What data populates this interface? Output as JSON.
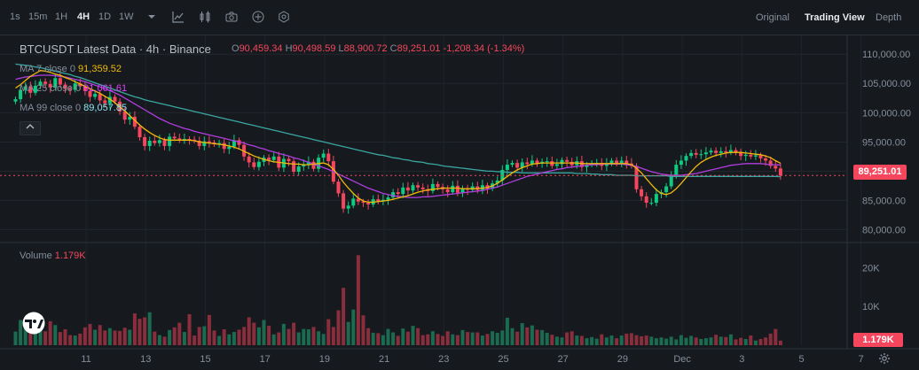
{
  "toolbar": {
    "timeframes": [
      "1s",
      "15m",
      "1H",
      "4H",
      "1D",
      "1W"
    ],
    "active_timeframe": "4H",
    "views": [
      "Original",
      "Trading View",
      "Depth"
    ],
    "active_view": "Trading View"
  },
  "legend": {
    "title": "BTCUSDT Latest Data · 4h · Binance",
    "ohlc": {
      "o_label": "O",
      "o": "90,459.34",
      "h_label": "H",
      "h": "90,498.59",
      "l_label": "L",
      "l": "88,900.72",
      "c_label": "C",
      "c": "89,251.01",
      "change": "-1,208.34 (-1.34%)"
    },
    "ma": [
      {
        "label": "MA 7 close 0",
        "value": "91,359.52",
        "color": "#f0b90b"
      },
      {
        "label": "MA 25 close 0",
        "value": "91,061.61",
        "color": "#e040fb"
      },
      {
        "label": "MA 99 close 0",
        "value": "89,057.85",
        "color": "#8fe3f0"
      }
    ],
    "volume_label": "Volume",
    "volume_value": "1.179K"
  },
  "colors": {
    "up": "#0ecb81",
    "down": "#f6465d",
    "ma7": "#f0b90b",
    "ma25": "#b13ee0",
    "ma99": "#3aa6a1"
  },
  "price_tag": "89,251.01",
  "volume_tag": "1.179K",
  "chart_data": {
    "type": "candlestick",
    "symbol": "BTCUSDT",
    "interval": "4h",
    "y_ticks": [
      "110,000.00",
      "105,000.00",
      "100,000.00",
      "95,000.00",
      "90,000.00",
      "85,000.00",
      "80,000.00"
    ],
    "y_tick_values": [
      110000,
      105000,
      100000,
      95000,
      90000,
      85000,
      80000
    ],
    "ylim": [
      78400,
      112300
    ],
    "volume_ticks": [
      "20K",
      "10K"
    ],
    "volume_tick_values": [
      20000,
      10000
    ],
    "volume_ylim": [
      0,
      23500
    ],
    "x_ticks": [
      "11",
      "13",
      "15",
      "17",
      "19",
      "21",
      "23",
      "25",
      "27",
      "29",
      "Dec",
      "3",
      "5",
      "7"
    ],
    "x_tick_index": [
      6,
      18,
      30,
      42,
      54,
      66,
      78,
      90,
      102,
      114,
      126,
      138,
      150,
      162
    ],
    "closes": [
      102300,
      103900,
      104500,
      103400,
      104600,
      105300,
      104900,
      104300,
      105900,
      104800,
      104100,
      103900,
      105000,
      104500,
      103700,
      102700,
      103200,
      102100,
      101600,
      102700,
      101900,
      100200,
      98800,
      99300,
      97600,
      95800,
      94300,
      95200,
      94800,
      95300,
      94300,
      95900,
      95600,
      95400,
      95500,
      95400,
      95200,
      94300,
      95100,
      94900,
      94600,
      94800,
      93800,
      94200,
      95300,
      94500,
      92500,
      91500,
      90700,
      91600,
      92300,
      91900,
      92500,
      90600,
      92100,
      91700,
      89900,
      90800,
      91200,
      91600,
      90400,
      92300,
      93000,
      91700,
      88200,
      86200,
      83600,
      84100,
      85300,
      84800,
      84600,
      84300,
      85200,
      84900,
      85100,
      85500,
      86400,
      86100,
      87200,
      86700,
      87600,
      87200,
      86900,
      86600,
      87800,
      87300,
      86900,
      86400,
      87500,
      86300,
      87100,
      86800,
      87400,
      86800,
      87600,
      87000,
      87900,
      88400,
      90200,
      91100,
      91400,
      90600,
      91500,
      91200,
      91800,
      91300,
      91600,
      91700,
      90900,
      91200,
      91900,
      91600,
      91000,
      91700,
      90700,
      91100,
      91300,
      91400,
      90900,
      91300,
      91800,
      91400,
      91800,
      91300,
      90900,
      86900,
      85700,
      84600,
      84600,
      86100,
      86400,
      87400,
      89300,
      91100,
      91800,
      92600,
      93100,
      92800,
      92900,
      93200,
      93500,
      93100,
      93400,
      93200,
      93600,
      93300,
      92600,
      92800,
      92500,
      92700,
      92200,
      91800,
      90900,
      90459,
      89251
    ],
    "opens": [
      101900,
      102300,
      103900,
      104500,
      103400,
      104600,
      105300,
      104900,
      104300,
      105900,
      104800,
      104100,
      103900,
      105000,
      104500,
      103700,
      102700,
      103200,
      102100,
      101600,
      102700,
      101900,
      100200,
      98800,
      99300,
      97600,
      95800,
      94300,
      95200,
      94800,
      95300,
      94300,
      95900,
      95600,
      95400,
      95500,
      95400,
      95200,
      94300,
      95100,
      94900,
      94600,
      94800,
      93800,
      94200,
      95300,
      94500,
      92500,
      91500,
      90700,
      91600,
      92300,
      91900,
      92500,
      90600,
      92100,
      91700,
      89900,
      90800,
      91200,
      91600,
      90400,
      92300,
      93000,
      91700,
      88200,
      86200,
      83600,
      84100,
      85300,
      84800,
      84600,
      84300,
      85200,
      84900,
      85100,
      85500,
      86400,
      86100,
      87200,
      86700,
      87600,
      87200,
      86900,
      86600,
      87800,
      87300,
      86900,
      86400,
      87500,
      86300,
      87100,
      86800,
      87400,
      86800,
      87600,
      87000,
      87900,
      88400,
      90200,
      91100,
      91400,
      90600,
      91500,
      91200,
      91800,
      91300,
      91600,
      91700,
      90900,
      91200,
      91900,
      91600,
      91000,
      91700,
      90700,
      91100,
      91300,
      91400,
      90900,
      91300,
      91800,
      91400,
      91800,
      91300,
      90900,
      86900,
      85700,
      84600,
      84600,
      86100,
      86400,
      87400,
      89300,
      91100,
      91800,
      92600,
      93100,
      92800,
      92900,
      93200,
      93500,
      93100,
      93400,
      93200,
      93600,
      93300,
      92600,
      92800,
      92500,
      92700,
      92200,
      91800,
      90900,
      90459
    ],
    "ma7": [
      104200,
      104800,
      105500,
      106200,
      106700,
      107200,
      107100,
      106900,
      106600,
      106400,
      106000,
      105700,
      105300,
      104900,
      104500,
      104100,
      103700,
      103300,
      102800,
      102300,
      101700,
      101000,
      100300,
      99500,
      98700,
      97900,
      97200,
      96600,
      96100,
      95700,
      95400,
      95300,
      95300,
      95300,
      95300,
      95300,
      95200,
      95000,
      94900,
      94800,
      94700,
      94600,
      94500,
      94300,
      94100,
      93800,
      93400,
      93000,
      92600,
      92300,
      92000,
      91800,
      91600,
      91500,
      91400,
      91300,
      91200,
      91200,
      91100,
      91100,
      91200,
      91300,
      91400,
      91100,
      90300,
      89300,
      88100,
      87100,
      86200,
      85400,
      84900,
      84700,
      84700,
      84800,
      84900,
      85000,
      85200,
      85400,
      85600,
      85800,
      86100,
      86400,
      86600,
      86800,
      86900,
      87000,
      87100,
      87100,
      87100,
      87100,
      87000,
      87000,
      87000,
      87000,
      87100,
      87200,
      87500,
      87900,
      88500,
      89100,
      89700,
      90200,
      90600,
      90900,
      91200,
      91300,
      91400,
      91400,
      91400,
      91400,
      91400,
      91400,
      91400,
      91400,
      91300,
      91300,
      91300,
      91300,
      91300,
      91300,
      91300,
      91300,
      91300,
      91300,
      91100,
      90500,
      89700,
      88700,
      87700,
      86800,
      86200,
      86000,
      86300,
      87000,
      87900,
      88900,
      89900,
      90800,
      91500,
      92000,
      92400,
      92700,
      92900,
      93100,
      93200,
      93200,
      93200,
      93100,
      93000,
      92900,
      92800,
      92600,
      92300,
      91800,
      91360
    ],
    "ma25": [
      105700,
      105900,
      106100,
      106200,
      106300,
      106400,
      106400,
      106400,
      106300,
      106200,
      106100,
      105900,
      105700,
      105500,
      105300,
      105000,
      104700,
      104400,
      104100,
      103800,
      103400,
      103000,
      102500,
      102000,
      101500,
      101000,
      100500,
      100000,
      99500,
      99000,
      98600,
      98200,
      97900,
      97600,
      97300,
      97100,
      96800,
      96600,
      96400,
      96200,
      96000,
      95800,
      95600,
      95400,
      95200,
      95000,
      94800,
      94500,
      94300,
      94000,
      93800,
      93500,
      93300,
      93000,
      92800,
      92600,
      92300,
      92100,
      91800,
      91500,
      91200,
      90900,
      90600,
      90300,
      89900,
      89500,
      89100,
      88700,
      88300,
      87900,
      87500,
      87100,
      86800,
      86500,
      86200,
      86000,
      85800,
      85700,
      85600,
      85500,
      85500,
      85500,
      85600,
      85600,
      85700,
      85800,
      85900,
      86000,
      86100,
      86200,
      86300,
      86400,
      86500,
      86600,
      86700,
      86900,
      87100,
      87300,
      87600,
      87900,
      88200,
      88500,
      88800,
      89100,
      89300,
      89500,
      89700,
      89900,
      90100,
      90300,
      90400,
      90600,
      90700,
      90800,
      90900,
      91000,
      91100,
      91100,
      91200,
      91200,
      91200,
      91200,
      91200,
      91100,
      91000,
      90800,
      90500,
      90200,
      89900,
      89700,
      89500,
      89400,
      89300,
      89300,
      89300,
      89400,
      89500,
      89600,
      89800,
      90000,
      90200,
      90400,
      90600,
      90800,
      91000,
      91100,
      91200,
      91300,
      91300,
      91300,
      91300,
      91200,
      91100,
      91100,
      91062
    ],
    "ma99": [
      108300,
      108200,
      108100,
      108000,
      107800,
      107700,
      107500,
      107300,
      107100,
      106900,
      106700,
      106500,
      106200,
      106000,
      105700,
      105400,
      105100,
      104800,
      104500,
      104200,
      103900,
      103600,
      103300,
      103000,
      102700,
      102500,
      102200,
      102000,
      101800,
      101600,
      101400,
      101200,
      101000,
      100800,
      100600,
      100400,
      100200,
      100000,
      99800,
      99600,
      99400,
      99200,
      99000,
      98800,
      98600,
      98400,
      98200,
      98000,
      97800,
      97600,
      97400,
      97200,
      97000,
      96800,
      96600,
      96400,
      96200,
      96000,
      95800,
      95600,
      95400,
      95200,
      95000,
      94800,
      94600,
      94400,
      94200,
      94000,
      93800,
      93600,
      93400,
      93200,
      93000,
      92800,
      92700,
      92500,
      92300,
      92200,
      92000,
      91900,
      91700,
      91600,
      91500,
      91300,
      91200,
      91100,
      90900,
      90800,
      90700,
      90600,
      90500,
      90400,
      90300,
      90200,
      90100,
      90000,
      90000,
      89900,
      89900,
      89800,
      89800,
      89800,
      89700,
      89700,
      89700,
      89700,
      89700,
      89700,
      89700,
      89700,
      89700,
      89700,
      89700,
      89600,
      89600,
      89600,
      89500,
      89500,
      89400,
      89400,
      89400,
      89300,
      89300,
      89300,
      89300,
      89200,
      89200,
      89200,
      89200,
      89200,
      89200,
      89200,
      89100,
      89100,
      89100,
      89100,
      89100,
      89100,
      89100,
      89100,
      89100,
      89100,
      89100,
      89100,
      89100,
      89100,
      89100,
      89100,
      89100,
      89100,
      89100,
      89100,
      89100,
      89100,
      89058
    ],
    "volumes": [
      3500,
      6500,
      5000,
      5000,
      4500,
      4000,
      3600,
      6200,
      5200,
      3400,
      4100,
      2600,
      2500,
      3000,
      4600,
      5500,
      4000,
      5200,
      3800,
      4400,
      3800,
      3700,
      4500,
      4000,
      8200,
      6800,
      7200,
      8500,
      3500,
      2600,
      2200,
      3900,
      4600,
      5800,
      3400,
      8000,
      2500,
      4700,
      4900,
      7800,
      3800,
      2400,
      4100,
      2800,
      3400,
      4000,
      4700,
      7200,
      5800,
      4600,
      6500,
      5000,
      2800,
      3300,
      5500,
      4200,
      5800,
      3300,
      4200,
      4100,
      4700,
      3600,
      2900,
      6700,
      4700,
      9000,
      14800,
      6000,
      9200,
      23200,
      7700,
      4400,
      3200,
      3100,
      2600,
      4200,
      3300,
      2400,
      4300,
      3500,
      5000,
      4400,
      2600,
      2800,
      3600,
      2900,
      2400,
      3600,
      2800,
      2600,
      3900,
      3400,
      3300,
      3300,
      2500,
      2900,
      3600,
      3200,
      3800,
      7100,
      4400,
      3500,
      5700,
      4600,
      5100,
      4000,
      3900,
      3200,
      2700,
      2200,
      2000,
      3300,
      3600,
      2500,
      2400,
      1800,
      2100,
      1700,
      2800,
      2000,
      2500,
      1800,
      2500,
      3000,
      3100,
      2600,
      2300,
      2500,
      2200,
      1800,
      2000,
      1700,
      2200,
      1500,
      2600,
      1900,
      2400,
      2000,
      1600,
      1800,
      2000,
      2700,
      2200,
      2100,
      2800,
      1500,
      1900,
      1600,
      2500,
      1200,
      1600,
      2000,
      3000,
      4200,
      1179
    ]
  }
}
